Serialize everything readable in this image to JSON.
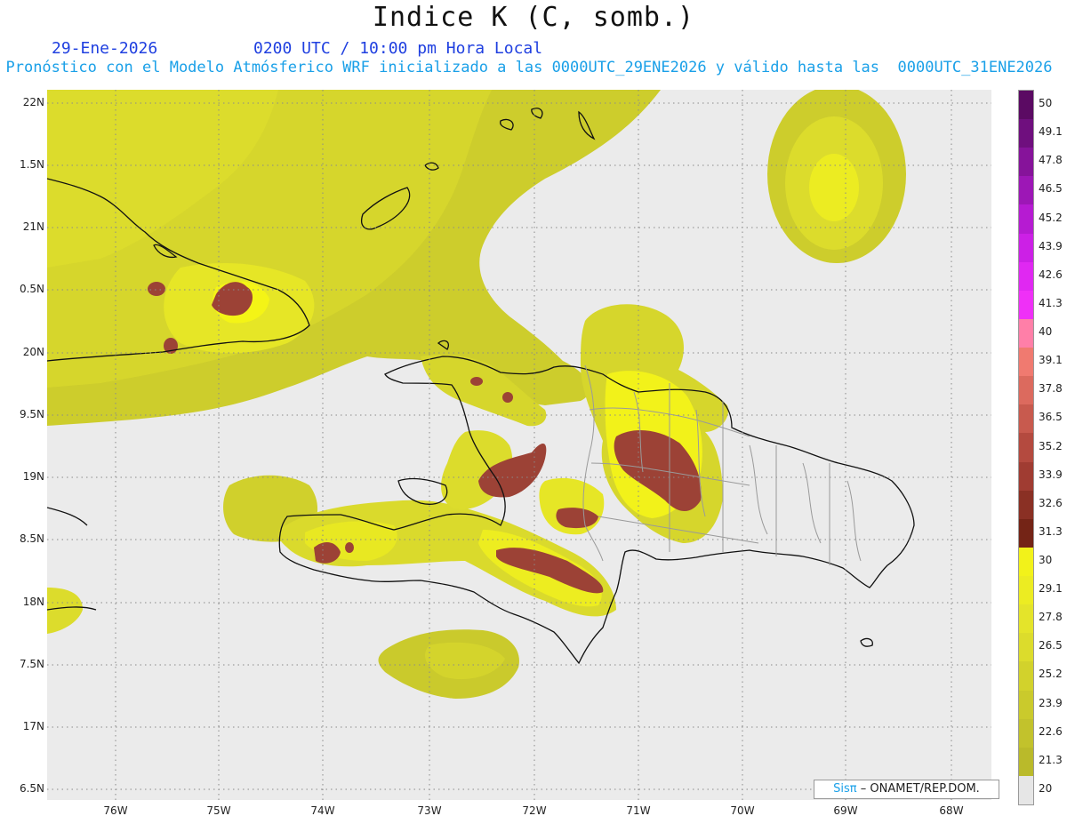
{
  "header": {
    "title": "Indice K (C, somb.)",
    "date": "29-Ene-2026",
    "time": "0200 UTC / 10:00 pm Hora Local",
    "forecast_line": "Pronóstico con el Modelo Atmósferico WRF inicializado a las 0000UTC_29ENE2026 y válido hasta las  0000UTC_31ENE2026"
  },
  "axes": {
    "lat_labels": [
      "22N",
      "1.5N",
      "21N",
      "0.5N",
      "20N",
      "9.5N",
      "19N",
      "8.5N",
      "18N",
      "7.5N",
      "17N",
      "6.5N"
    ],
    "lon_labels": [
      "76W",
      "75W",
      "74W",
      "73W",
      "72W",
      "71W",
      "70W",
      "69W",
      "68W"
    ]
  },
  "colorbar": {
    "labels": [
      "50",
      "49.1",
      "47.8",
      "46.5",
      "45.2",
      "43.9",
      "42.6",
      "41.3",
      "40",
      "39.1",
      "37.8",
      "36.5",
      "35.2",
      "33.9",
      "32.6",
      "31.3",
      "30",
      "29.1",
      "27.8",
      "26.5",
      "25.2",
      "23.9",
      "22.6",
      "21.3",
      "20"
    ],
    "colors": [
      "#5b0a63",
      "#6f0f7e",
      "#86139a",
      "#9d17b6",
      "#b61bd2",
      "#cc20e6",
      "#e028f2",
      "#ef30f7",
      "#ff7fa8",
      "#f07a70",
      "#dc6a5e",
      "#c85a4e",
      "#b44a3f",
      "#a03c32",
      "#8a3024",
      "#742416",
      "#f2f21a",
      "#ecec22",
      "#e4e42a",
      "#dcdc2c",
      "#d2d22c",
      "#caca2c",
      "#c2c22c",
      "#baba2a",
      "#e6e6e6"
    ]
  },
  "credit": {
    "brand": "Sisπ",
    "text": "– ONAMET/REP.DOM."
  }
}
